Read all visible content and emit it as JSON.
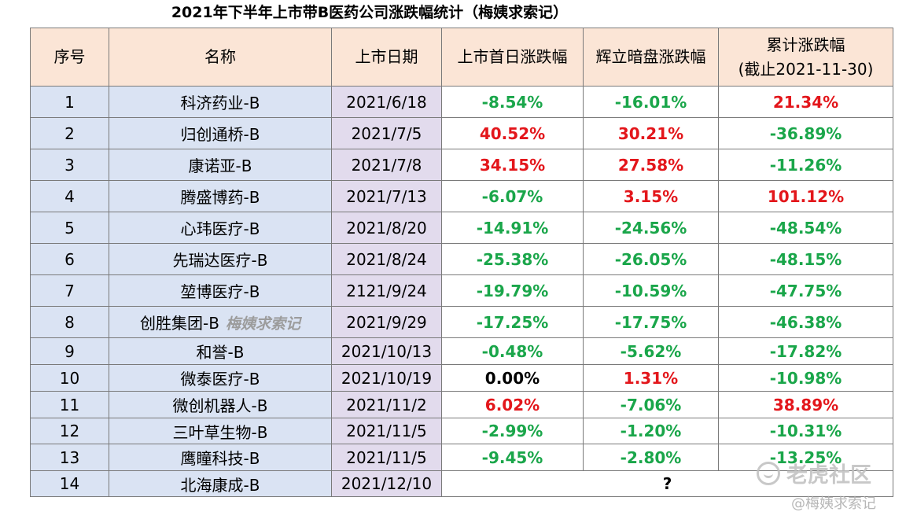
{
  "title": "2021年下半年上市带B医药公司涨跌幅统计（梅姨求索记）",
  "headers": {
    "seq": "序号",
    "name": "名称",
    "listing_date": "上市日期",
    "first_day": "上市首日涨跌幅",
    "grey_market": "辉立暗盘涨跌幅",
    "cumulative_line1": "累计涨跌幅",
    "cumulative_line2": "(截止2021-11-30)"
  },
  "rows": [
    {
      "seq": "1",
      "name": "科济药业-B",
      "date": "2021/6/18",
      "first_day": "-8.54%",
      "grey": "-16.01%",
      "cumulative": "21.34%"
    },
    {
      "seq": "2",
      "name": "归创通桥-B",
      "date": "2021/7/5",
      "first_day": "40.52%",
      "grey": "30.21%",
      "cumulative": "-36.89%"
    },
    {
      "seq": "3",
      "name": "康诺亚-B",
      "date": "2021/7/8",
      "first_day": "34.15%",
      "grey": "27.58%",
      "cumulative": "-11.26%"
    },
    {
      "seq": "4",
      "name": "腾盛博药-B",
      "date": "2021/7/13",
      "first_day": "-6.07%",
      "grey": "3.15%",
      "cumulative": "101.12%"
    },
    {
      "seq": "5",
      "name": "心玮医疗-B",
      "date": "2021/8/20",
      "first_day": "-14.91%",
      "grey": "-24.56%",
      "cumulative": "-48.54%"
    },
    {
      "seq": "6",
      "name": "先瑞达医疗-B",
      "date": "2021/8/24",
      "first_day": "-25.38%",
      "grey": "-26.05%",
      "cumulative": "-48.15%"
    },
    {
      "seq": "7",
      "name": "堃博医疗-B",
      "date": "2121/9/24",
      "first_day": "-19.79%",
      "grey": "-10.59%",
      "cumulative": "-47.75%"
    },
    {
      "seq": "8",
      "name": "创胜集团-B",
      "name_watermark": "梅姨求索记",
      "date": "2021/9/29",
      "first_day": "-17.25%",
      "grey": "-17.75%",
      "cumulative": "-46.38%"
    },
    {
      "seq": "9",
      "name": "和誉-B",
      "date": "2021/10/13",
      "first_day": "-0.48%",
      "grey": "-5.62%",
      "cumulative": "-17.82%"
    },
    {
      "seq": "10",
      "name": "微泰医疗-B",
      "date": "2021/10/19",
      "first_day": "0.00%",
      "grey": "1.31%",
      "cumulative": "-10.98%"
    },
    {
      "seq": "11",
      "name": "微创机器人-B",
      "date": "2021/11/2",
      "first_day": "6.02%",
      "grey": "-7.06%",
      "cumulative": "38.89%"
    },
    {
      "seq": "12",
      "name": "三叶草生物-B",
      "date": "2021/11/5",
      "first_day": "-2.99%",
      "grey": "-1.20%",
      "cumulative": "-10.31%"
    },
    {
      "seq": "13",
      "name": "鹰瞳科技-B",
      "date": "2021/11/5",
      "first_day": "-9.45%",
      "grey": "-2.80%",
      "cumulative": "-13.25%"
    }
  ],
  "last_row": {
    "seq": "14",
    "name": "北海康成-B",
    "date": "2021/12/10",
    "value": "?"
  },
  "colors": {
    "negative": "#1aa64a",
    "positive": "#e3161b",
    "header_bg": "#fbe5d6",
    "name_col_bg": "#dae3f3",
    "date_col_bg": "#e2dbed"
  },
  "watermark": {
    "brand": "老虎社区",
    "brand_icon": "tiger-community-logo-icon",
    "handle": "@梅姨求索记"
  }
}
